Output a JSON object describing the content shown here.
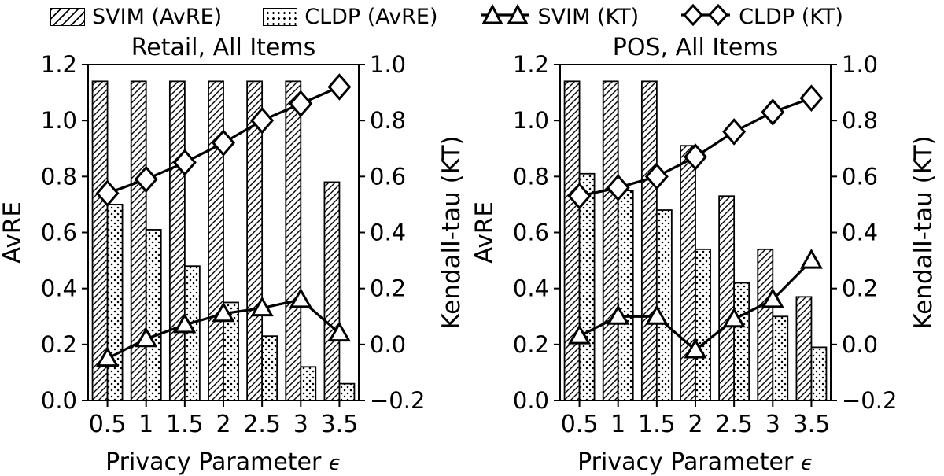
{
  "colors": {
    "foreground": "#000000",
    "background": "#ffffff"
  },
  "legend": {
    "items": [
      {
        "label": "SVIM (AvRE)",
        "swatch": "hatched-bar"
      },
      {
        "label": "CLDP (AvRE)",
        "swatch": "dotted-bar"
      },
      {
        "label": "SVIM (KT)",
        "swatch": "triangle-line"
      },
      {
        "label": "CLDP (KT)",
        "swatch": "diamond-line"
      }
    ]
  },
  "chart_data": [
    {
      "type": "bar+line",
      "title": "Retail, All Items",
      "x_values": [
        0.5,
        1,
        1.5,
        2,
        2.5,
        3,
        3.5
      ],
      "x_tick_labels": [
        "0.5",
        "1",
        "1.5",
        "2",
        "2.5",
        "3",
        "3.5"
      ],
      "xlabel": "Privacy Parameter",
      "xlabel_symbol": "ϵ",
      "left_axis": {
        "label": "AvRE",
        "min": 0.0,
        "max": 1.2,
        "ticks": [
          {
            "v": 1.2,
            "label": "1.2"
          },
          {
            "v": 1.0,
            "label": "1.0"
          },
          {
            "v": 0.8,
            "label": "0.8"
          },
          {
            "v": 0.6,
            "label": "0.6"
          },
          {
            "v": 0.4,
            "label": "0.4"
          },
          {
            "v": 0.2,
            "label": "0.2"
          },
          {
            "v": 0.0,
            "label": "0.0"
          }
        ]
      },
      "right_axis": {
        "label": "Kendall-tau (KT)",
        "min": -0.2,
        "max": 1.0,
        "ticks": [
          {
            "v": 1.0,
            "label": "1.0"
          },
          {
            "v": 0.8,
            "label": "0.8"
          },
          {
            "v": 0.6,
            "label": "0.6"
          },
          {
            "v": 0.4,
            "label": "0.4"
          },
          {
            "v": 0.2,
            "label": "0.2"
          },
          {
            "v": 0.0,
            "label": "0.0"
          },
          {
            "v": -0.2,
            "label": "−0.2"
          }
        ]
      },
      "bar_series": [
        {
          "name": "SVIM (AvRE)",
          "axis": "left",
          "pattern": "diagonal-hatch",
          "values": [
            1.14,
            1.14,
            1.14,
            1.14,
            1.14,
            1.14,
            0.78
          ]
        },
        {
          "name": "CLDP (AvRE)",
          "axis": "left",
          "pattern": "dots",
          "values": [
            0.7,
            0.61,
            0.48,
            0.35,
            0.23,
            0.12,
            0.06
          ]
        }
      ],
      "line_series": [
        {
          "name": "SVIM (KT)",
          "axis": "right",
          "marker": "triangle",
          "values": [
            -0.05,
            0.02,
            0.07,
            0.11,
            0.13,
            0.16,
            0.04
          ]
        },
        {
          "name": "CLDP (KT)",
          "axis": "right",
          "marker": "diamond",
          "values": [
            0.54,
            0.59,
            0.65,
            0.72,
            0.8,
            0.86,
            0.92
          ]
        }
      ]
    },
    {
      "type": "bar+line",
      "title": "POS, All Items",
      "x_values": [
        0.5,
        1,
        1.5,
        2,
        2.5,
        3,
        3.5
      ],
      "x_tick_labels": [
        "0.5",
        "1",
        "1.5",
        "2",
        "2.5",
        "3",
        "3.5"
      ],
      "xlabel": "Privacy Parameter",
      "xlabel_symbol": "ϵ",
      "left_axis": {
        "label": "AvRE",
        "min": 0.0,
        "max": 1.2,
        "ticks": [
          {
            "v": 1.2,
            "label": "1.2"
          },
          {
            "v": 1.0,
            "label": "1.0"
          },
          {
            "v": 0.8,
            "label": "0.8"
          },
          {
            "v": 0.6,
            "label": "0.6"
          },
          {
            "v": 0.4,
            "label": "0.4"
          },
          {
            "v": 0.2,
            "label": "0.2"
          },
          {
            "v": 0.0,
            "label": "0.0"
          }
        ]
      },
      "right_axis": {
        "label": "Kendall-tau (KT)",
        "min": -0.2,
        "max": 1.0,
        "ticks": [
          {
            "v": 1.0,
            "label": "1.0"
          },
          {
            "v": 0.8,
            "label": "0.8"
          },
          {
            "v": 0.6,
            "label": "0.6"
          },
          {
            "v": 0.4,
            "label": "0.4"
          },
          {
            "v": 0.2,
            "label": "0.2"
          },
          {
            "v": 0.0,
            "label": "0.0"
          },
          {
            "v": -0.2,
            "label": "−0.2"
          }
        ]
      },
      "bar_series": [
        {
          "name": "SVIM (AvRE)",
          "axis": "left",
          "pattern": "diagonal-hatch",
          "values": [
            1.14,
            1.14,
            1.14,
            0.91,
            0.73,
            0.54,
            0.37
          ]
        },
        {
          "name": "CLDP (AvRE)",
          "axis": "left",
          "pattern": "dots",
          "values": [
            0.81,
            0.75,
            0.68,
            0.54,
            0.42,
            0.3,
            0.19
          ]
        }
      ],
      "line_series": [
        {
          "name": "SVIM (KT)",
          "axis": "right",
          "marker": "triangle",
          "values": [
            0.03,
            0.1,
            0.1,
            -0.02,
            0.09,
            0.16,
            0.3
          ]
        },
        {
          "name": "CLDP (KT)",
          "axis": "right",
          "marker": "diamond",
          "values": [
            0.53,
            0.56,
            0.6,
            0.67,
            0.76,
            0.83,
            0.88
          ]
        }
      ]
    }
  ]
}
